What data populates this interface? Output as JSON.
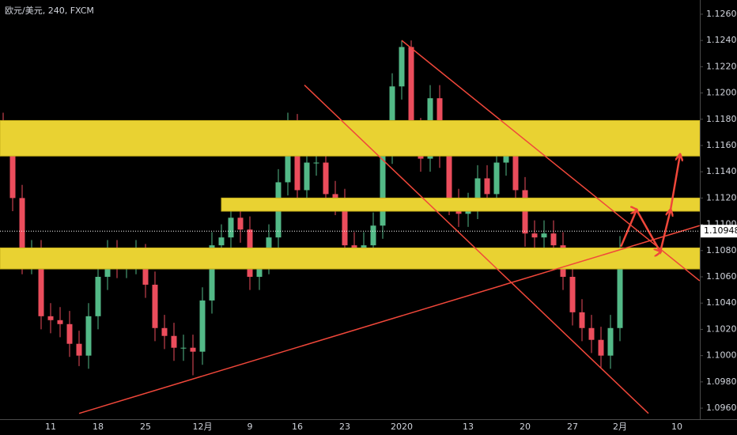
{
  "chart_data": {
    "type": "candlestick",
    "title": "欧元/美元, 240, FXCM",
    "categories": [
      null,
      null,
      null,
      null,
      null,
      "11",
      null,
      null,
      null,
      null,
      "18",
      null,
      null,
      null,
      null,
      "25",
      null,
      null,
      null,
      null,
      null,
      "12月",
      null,
      null,
      null,
      null,
      "9",
      null,
      null,
      null,
      null,
      "16",
      null,
      null,
      null,
      null,
      "23",
      null,
      null,
      null,
      null,
      null,
      "2020",
      null,
      null,
      null,
      null,
      null,
      null,
      "13",
      null,
      null,
      null,
      null,
      null,
      "20",
      null,
      null,
      null,
      null,
      "27",
      null,
      null,
      null,
      null,
      "2月",
      null,
      null,
      null,
      null,
      null,
      "10"
    ],
    "open": [
      1.1175,
      1.1162,
      1.112,
      1.1072,
      1.1078,
      1.103,
      1.1027,
      1.1024,
      1.1009,
      1.1,
      1.103,
      1.106,
      1.1078,
      1.1069,
      1.1072,
      1.1075,
      1.1054,
      1.1021,
      1.1015,
      1.1006,
      1.1006,
      1.1003,
      1.1042,
      1.1084,
      1.109,
      1.1105,
      1.1096,
      1.106,
      1.1072,
      1.109,
      1.1132,
      1.1174,
      1.1126,
      1.1147,
      1.1147,
      1.1123,
      1.1117,
      1.1084,
      1.1078,
      1.1084,
      1.1099,
      1.1156,
      1.1205,
      1.1235,
      1.1171,
      1.115,
      1.1196,
      1.1153,
      1.1117,
      1.1108,
      1.1114,
      1.1135,
      1.1123,
      1.1147,
      1.1156,
      1.1126,
      1.1093,
      1.109,
      1.1093,
      1.1084,
      1.106,
      1.1033,
      1.1021,
      1.1012,
      1.1,
      1.1021,
      null,
      null,
      null,
      null,
      null,
      null
    ],
    "high": [
      1.1185,
      1.1172,
      1.113,
      1.1088,
      1.1088,
      1.104,
      1.1037,
      1.1034,
      1.1019,
      1.104,
      1.107,
      1.1088,
      1.1088,
      1.1082,
      1.1088,
      1.1085,
      1.1064,
      1.1031,
      1.1025,
      1.1016,
      1.1016,
      1.1052,
      1.1094,
      1.11,
      1.1115,
      1.1115,
      1.1106,
      1.1082,
      1.11,
      1.1142,
      1.1185,
      1.1184,
      1.1157,
      1.1157,
      1.1157,
      1.1133,
      1.1127,
      1.1094,
      1.1094,
      1.1109,
      1.1166,
      1.1215,
      1.124,
      1.124,
      1.1181,
      1.1206,
      1.1206,
      1.1163,
      1.1127,
      1.1124,
      1.1145,
      1.1145,
      1.1157,
      1.1166,
      1.1166,
      1.1136,
      1.1103,
      1.1103,
      1.1103,
      1.1094,
      1.107,
      1.1043,
      1.1031,
      1.1022,
      1.1031,
      1.1091,
      null,
      null,
      null,
      null,
      null,
      null
    ],
    "low": [
      1.1152,
      1.111,
      1.1062,
      1.1062,
      1.102,
      1.1017,
      1.1014,
      1.0999,
      1.0992,
      1.099,
      1.102,
      1.105,
      1.1059,
      1.1059,
      1.1062,
      1.1044,
      1.1011,
      1.1005,
      1.0996,
      1.0996,
      1.0985,
      1.0993,
      1.1032,
      1.1074,
      1.108,
      1.1086,
      1.105,
      1.105,
      1.1062,
      1.108,
      1.1122,
      1.1116,
      1.1116,
      1.1137,
      1.1113,
      1.1107,
      1.1074,
      1.1068,
      1.1068,
      1.1074,
      1.1089,
      1.1146,
      1.1195,
      1.1161,
      1.114,
      1.114,
      1.1143,
      1.1107,
      1.1098,
      1.1098,
      1.1104,
      1.1113,
      1.1113,
      1.1137,
      1.1116,
      1.1083,
      1.108,
      1.108,
      1.1074,
      1.105,
      1.1023,
      1.1011,
      1.1002,
      1.099,
      1.099,
      1.1011,
      null,
      null,
      null,
      null,
      null,
      null
    ],
    "close": [
      1.1162,
      1.112,
      1.1072,
      1.1078,
      1.103,
      1.1027,
      1.1024,
      1.1009,
      1.1,
      1.103,
      1.106,
      1.1078,
      1.1069,
      1.1072,
      1.1075,
      1.1054,
      1.1021,
      1.1015,
      1.1006,
      1.1006,
      1.1003,
      1.1042,
      1.1084,
      1.109,
      1.1105,
      1.1096,
      1.106,
      1.1072,
      1.109,
      1.1132,
      1.1174,
      1.1126,
      1.1147,
      1.1147,
      1.1123,
      1.1117,
      1.1084,
      1.1078,
      1.1084,
      1.1099,
      1.1156,
      1.1205,
      1.1235,
      1.1171,
      1.115,
      1.1196,
      1.1153,
      1.1117,
      1.1108,
      1.1114,
      1.1135,
      1.1123,
      1.1147,
      1.1156,
      1.1126,
      1.1093,
      1.109,
      1.1093,
      1.1084,
      1.106,
      1.1033,
      1.1021,
      1.1012,
      1.1,
      1.1021,
      1.1081,
      null,
      null,
      null,
      null,
      null,
      null
    ],
    "up_color": "#53b987",
    "down_color": "#eb4d5c",
    "ylim": [
      1.09516,
      1.12708
    ],
    "yticks": [
      {
        "value": 1.096,
        "label": "1.09600"
      },
      {
        "value": 1.098,
        "label": "1.09800"
      },
      {
        "value": 1.1,
        "label": "1.10000"
      },
      {
        "value": 1.102,
        "label": "1.10200"
      },
      {
        "value": 1.104,
        "label": "1.10400"
      },
      {
        "value": 1.106,
        "label": "1.10600"
      },
      {
        "value": 1.108,
        "label": "1.10800"
      },
      {
        "value": 1.11,
        "label": "1.11000"
      },
      {
        "value": 1.112,
        "label": "1.11200"
      },
      {
        "value": 1.114,
        "label": "1.11400"
      },
      {
        "value": 1.116,
        "label": "1.11600"
      },
      {
        "value": 1.118,
        "label": "1.11800"
      },
      {
        "value": 1.12,
        "label": "1.12000"
      },
      {
        "value": 1.122,
        "label": "1.12200"
      },
      {
        "value": 1.124,
        "label": "1.12400"
      },
      {
        "value": 1.126,
        "label": "1.12600"
      }
    ],
    "last_price": 1.10948,
    "zone_color": "#e9d232",
    "zones": [
      {
        "range": [
          1.1152,
          1.1179
        ]
      },
      {
        "range": [
          1.111,
          1.112
        ],
        "from": 23
      },
      {
        "range": [
          1.1066,
          1.1082
        ]
      }
    ],
    "line_color": "#f0473a",
    "trendlines": [
      {
        "from": [
          42,
          1.124
        ],
        "to": [
          73.4,
          1.1057
        ]
      },
      {
        "from": [
          31.75,
          1.1206
        ],
        "to": [
          68,
          1.0956
        ]
      },
      {
        "from": [
          8,
          1.0956
        ],
        "to": [
          73.4,
          1.1099
        ]
      }
    ],
    "projection": {
      "x": [
        65.1,
        66.75,
        69.25,
        70.33,
        71.33
      ],
      "y": [
        1.1083,
        1.1111,
        1.1079,
        1.1111,
        1.1153
      ]
    }
  }
}
